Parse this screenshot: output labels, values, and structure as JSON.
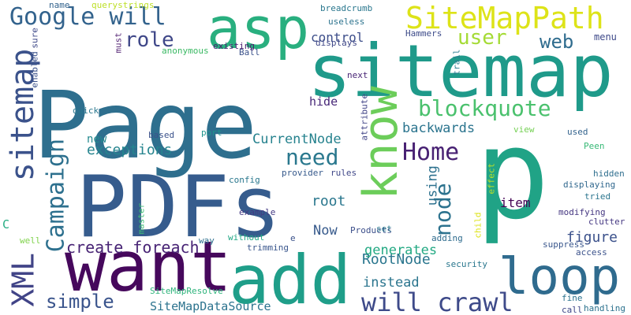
{
  "words": [
    {
      "text": "Page",
      "color": "#2e6f8e"
    },
    {
      "text": "p",
      "color": "#20a386"
    },
    {
      "text": "sitemap",
      "color": "#1f9a8a"
    },
    {
      "text": "PDFs",
      "color": "#365c8d"
    },
    {
      "text": "want",
      "color": "#46085c"
    },
    {
      "text": "add",
      "color": "#1f9e89"
    },
    {
      "text": "asp",
      "color": "#29af7f"
    },
    {
      "text": "loop",
      "color": "#2f6b8e"
    },
    {
      "text": "know",
      "color": "#6ccd5a"
    },
    {
      "text": "SiteMapPath",
      "color": "#dde318"
    },
    {
      "text": "Google will",
      "color": "#33638d"
    },
    {
      "text": "sitemap",
      "color": "#3b528b"
    },
    {
      "text": "XML",
      "color": "#414487"
    },
    {
      "text": "Campaign",
      "color": "#2d708e"
    },
    {
      "text": "will crawl",
      "color": "#3e4a89"
    },
    {
      "text": "blockquote",
      "color": "#4ac16d"
    },
    {
      "text": "user",
      "color": "#a5db36"
    },
    {
      "text": "web",
      "color": "#2f6c8e"
    },
    {
      "text": "role",
      "color": "#3f4788"
    },
    {
      "text": "need",
      "color": "#2a788e"
    },
    {
      "text": "Home",
      "color": "#482173"
    },
    {
      "text": "node",
      "color": "#2c728e"
    },
    {
      "text": "simple",
      "color": "#3a548c"
    },
    {
      "text": "create foreach",
      "color": "#482475"
    },
    {
      "text": "exceptions",
      "color": "#25848e"
    },
    {
      "text": "figure",
      "color": "#3b518b"
    },
    {
      "text": "backwards",
      "color": "#2b748e"
    },
    {
      "text": "CurrentNode",
      "color": "#26828e"
    },
    {
      "text": "root",
      "color": "#2a778e"
    },
    {
      "text": "RootNode",
      "color": "#2a768e"
    },
    {
      "text": "generates",
      "color": "#23a983"
    },
    {
      "text": "instead",
      "color": "#2b758e"
    },
    {
      "text": "SiteMapDataSource",
      "color": "#2c738e"
    },
    {
      "text": "item",
      "color": "#440154"
    },
    {
      "text": "control",
      "color": "#3d4e8a"
    },
    {
      "text": "Now",
      "color": "#375a8c"
    },
    {
      "text": "hide",
      "color": "#482878"
    },
    {
      "text": "using",
      "color": "#2d718e"
    },
    {
      "text": "menu",
      "color": "#3e4989"
    },
    {
      "text": "new",
      "color": "#23898e"
    },
    {
      "text": "C",
      "color": "#25ac82"
    },
    {
      "text": "Products",
      "color": "#3c4f8a"
    },
    {
      "text": "modifying",
      "color": "#453781"
    },
    {
      "text": "displaying",
      "color": "#31688e"
    },
    {
      "text": "clutter",
      "color": "#453882"
    },
    {
      "text": "hidden",
      "color": "#2e6e8e"
    },
    {
      "text": "querystrings",
      "color": "#bddf26"
    },
    {
      "text": "breadcrumb",
      "color": "#2a778e"
    },
    {
      "text": "useless",
      "color": "#2c738e"
    },
    {
      "text": "displays",
      "color": "#3f4788"
    },
    {
      "text": "existing",
      "color": "#481d6f"
    },
    {
      "text": "anonymous",
      "color": "#3ab963"
    },
    {
      "text": "Ball",
      "color": "#3b528b"
    },
    {
      "text": "Hammers",
      "color": "#3e4c8a"
    },
    {
      "text": "name",
      "color": "#33638d"
    },
    {
      "text": "must",
      "color": "#5c2f7b"
    },
    {
      "text": "sure",
      "color": "#3e4989"
    },
    {
      "text": "enabled",
      "color": "#3b528b"
    },
    {
      "text": "quick",
      "color": "#2a778e"
    },
    {
      "text": "based",
      "color": "#3b528b"
    },
    {
      "text": "port",
      "color": "#1f948c"
    },
    {
      "text": "next",
      "color": "#482475"
    },
    {
      "text": "attribute",
      "color": "#414487"
    },
    {
      "text": "trail",
      "color": "#287c8e"
    },
    {
      "text": "view",
      "color": "#75d054"
    },
    {
      "text": "used",
      "color": "#33638d"
    },
    {
      "text": "Peen",
      "color": "#38b977"
    },
    {
      "text": "tried",
      "color": "#2b758e"
    },
    {
      "text": "config",
      "color": "#2a788e"
    },
    {
      "text": "provider",
      "color": "#375a8c"
    },
    {
      "text": "rules",
      "color": "#3f4788"
    },
    {
      "text": "effect",
      "color": "#b5de2b"
    },
    {
      "text": "child",
      "color": "#dde318"
    },
    {
      "text": "example",
      "color": "#443a83"
    },
    {
      "text": "master",
      "color": "#3dbc74"
    },
    {
      "text": "way",
      "color": "#2d708e"
    },
    {
      "text": "without",
      "color": "#22a785"
    },
    {
      "text": "set",
      "color": "#2a788e"
    },
    {
      "text": "adding",
      "color": "#2f6c8e"
    },
    {
      "text": "e",
      "color": "#3b528b"
    },
    {
      "text": "trimming",
      "color": "#39568c"
    },
    {
      "text": "suppress",
      "color": "#39568c"
    },
    {
      "text": "access",
      "color": "#3b528b"
    },
    {
      "text": "security",
      "color": "#2a778e"
    },
    {
      "text": "well",
      "color": "#81d34d"
    },
    {
      "text": "SiteMapResolve",
      "color": "#2fb47c"
    },
    {
      "text": "fine",
      "color": "#2c728e"
    },
    {
      "text": "call",
      "color": "#3f4788"
    },
    {
      "text": "handling",
      "color": "#2c728e"
    }
  ]
}
